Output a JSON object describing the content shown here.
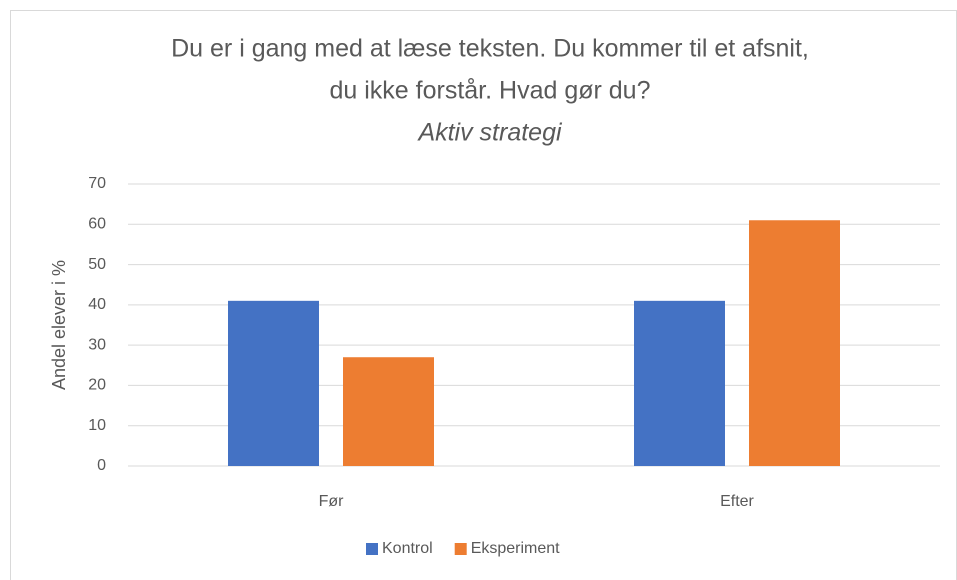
{
  "chart_data": {
    "type": "bar",
    "title": [
      "Du er i gang med at læse teksten. Du kommer til et afsnit,",
      "du ikke forstår. Hvad gør du?"
    ],
    "subtitle": "Aktiv strategi",
    "y_label": "Andel elever i %",
    "categories": [
      "Før",
      "Efter"
    ],
    "series": [
      {
        "name": "Kontrol",
        "color": "#4472c4",
        "values": [
          41,
          41
        ]
      },
      {
        "name": "Eksperiment",
        "color": "#ed7d31",
        "values": [
          27,
          61
        ]
      }
    ],
    "ylim": [
      0,
      70
    ],
    "yticks": [
      0,
      10,
      20,
      30,
      40,
      50,
      60,
      70
    ],
    "grid": true,
    "legend": "bottom"
  }
}
